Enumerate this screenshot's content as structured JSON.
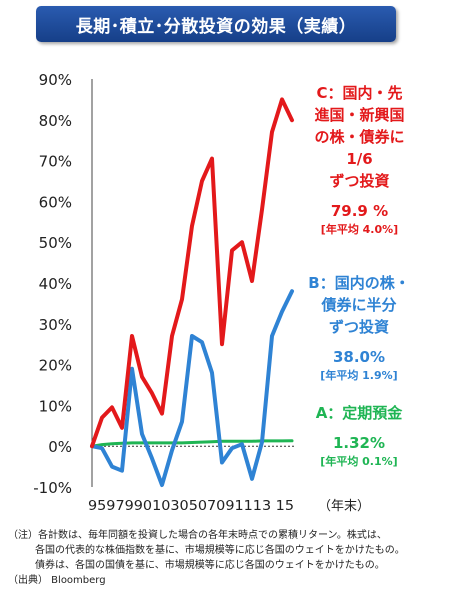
{
  "title": "長期･積立･分散投資の効果（実績）",
  "chart_data": {
    "type": "line",
    "x_tick_text": "95979901030507091113 15",
    "x_unit_label": "（年末）",
    "y_ticks": [
      "90%",
      "80%",
      "70%",
      "60%",
      "50%",
      "40%",
      "30%",
      "20%",
      "10%",
      "0%",
      "-10%"
    ],
    "ylim": [
      -10,
      90
    ],
    "grid": false,
    "series": [
      {
        "name": "C：国内・先進国・新興国の株・債券に1/6ずつ投資",
        "color": "#e3191b",
        "values": [
          0,
          7,
          9.5,
          4.5,
          27,
          17,
          13,
          8,
          27,
          36,
          54,
          65,
          70.5,
          25,
          48,
          50,
          40.5,
          58,
          77,
          85,
          79.9
        ]
      },
      {
        "name": "B：国内の株・債券に半分ずつ投資",
        "color": "#2f83d4",
        "values": [
          0,
          -0.5,
          -5,
          -6,
          19,
          3,
          -3,
          -9.5,
          -1,
          6,
          27,
          25.5,
          18,
          -4,
          -0.5,
          0.5,
          -8,
          1,
          27,
          33,
          38
        ]
      },
      {
        "name": "A：定期預金",
        "color": "#1fb554",
        "values": [
          0,
          0.4,
          0.6,
          0.7,
          0.8,
          0.8,
          0.8,
          0.8,
          0.8,
          0.8,
          0.9,
          1.0,
          1.1,
          1.2,
          1.2,
          1.2,
          1.2,
          1.3,
          1.3,
          1.3,
          1.32
        ]
      }
    ]
  },
  "annotations": {
    "c": {
      "lines": [
        "C：国内・先",
        "進国・新興国",
        "の株・債券に",
        "1/6",
        "ずつ投資"
      ],
      "value": "79.9 %",
      "avg": "[年平均 4.0%]"
    },
    "b": {
      "lines": [
        "B：国内の株・",
        "債券に半分",
        "ずつ投資"
      ],
      "value": "38.0%",
      "avg": "[年平均 1.9%]"
    },
    "a": {
      "lines": [
        "A：定期預金"
      ],
      "value": "1.32%",
      "avg": "[年平均 0.1%]"
    }
  },
  "notes": {
    "line1": "（注）各計数は、毎年同額を投資した場合の各年末時点での累積リターン。株式は、",
    "line2": "各国の代表的な株価指数を基に、市場規模等に応じ各国のウェイトをかけたもの。",
    "line3": "債券は、各国の国債を基に、市場規模等に応じ各国のウェイトをかけたもの。",
    "line4": "（出典） Bloomberg"
  }
}
